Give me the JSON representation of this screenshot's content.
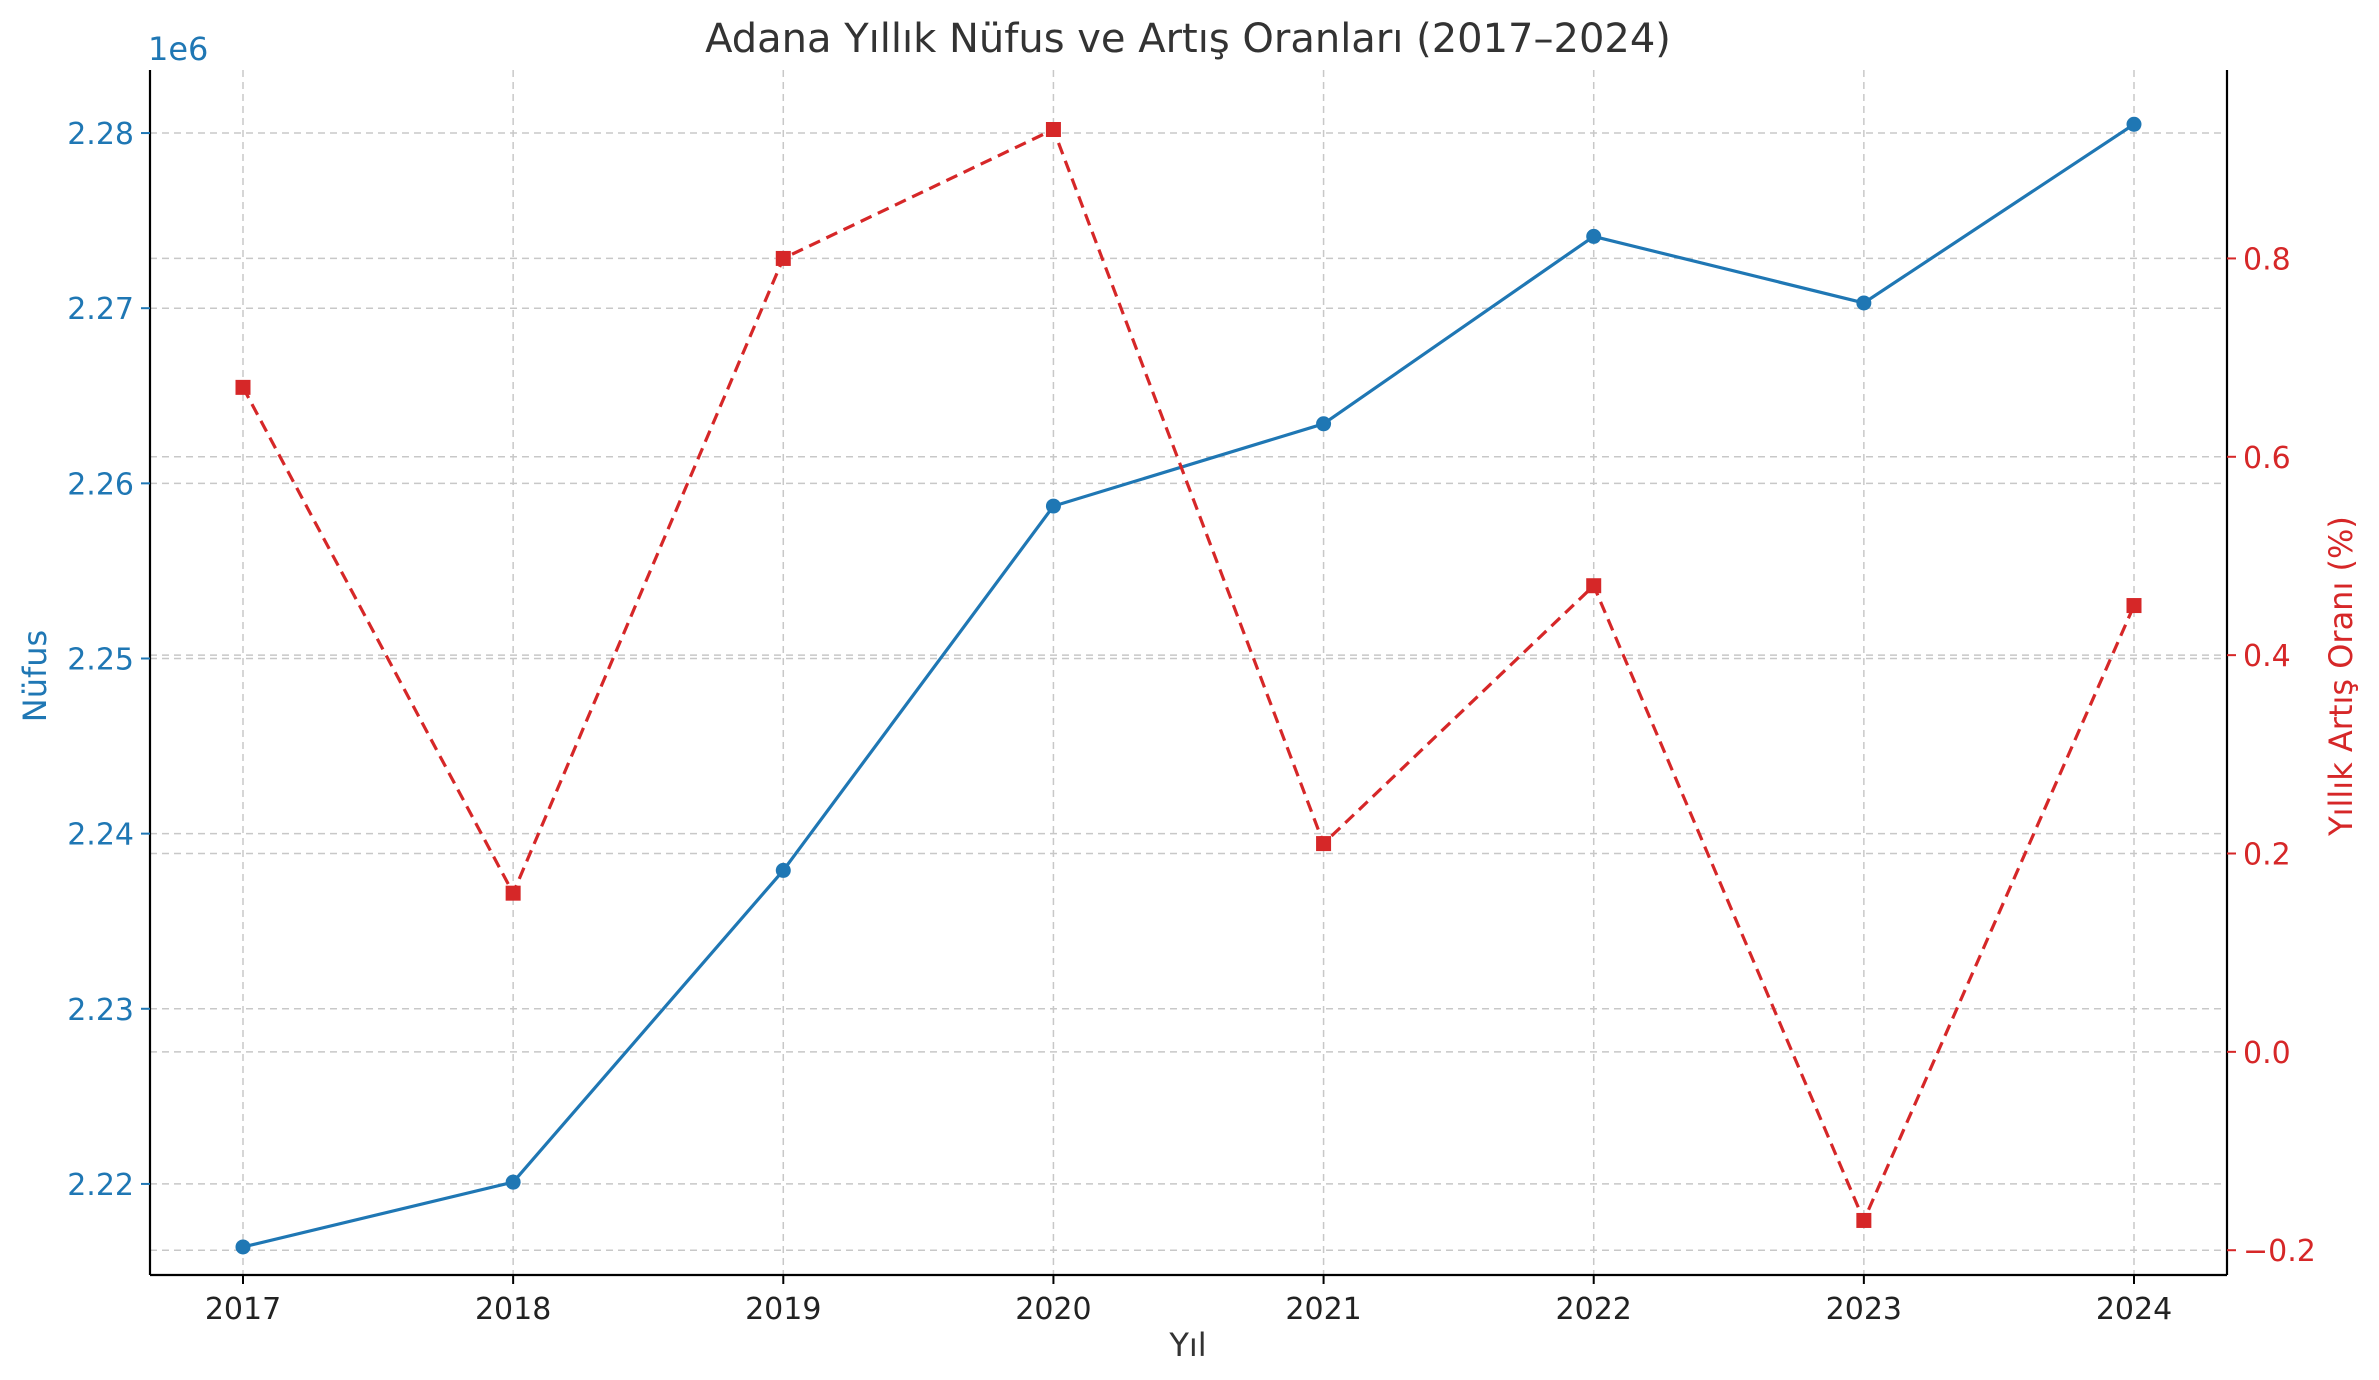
{
  "chart_data": {
    "type": "line",
    "title": "Adana Yıllık Nüfus ve Artış Oranları (2017–2024)",
    "xlabel": "Yıl",
    "x": [
      2017,
      2018,
      2019,
      2020,
      2021,
      2022,
      2023,
      2024
    ],
    "y_left": {
      "label": "Nüfus",
      "offset_label": "1e6",
      "color": "#1f77b4",
      "ticks": [
        2.22,
        2.23,
        2.24,
        2.25,
        2.26,
        2.27,
        2.28
      ],
      "tick_labels": [
        "2.22",
        "2.23",
        "2.24",
        "2.25",
        "2.26",
        "2.27",
        "2.28"
      ],
      "ylim": [
        2.2148,
        2.2836
      ]
    },
    "y_right": {
      "label": "Yıllık Artış Oranı (%)",
      "color": "#d62728",
      "ticks": [
        -0.2,
        0.0,
        0.2,
        0.4,
        0.6,
        0.8
      ],
      "tick_labels": [
        "−0.2",
        "0.0",
        "0.2",
        "0.4",
        "0.6",
        "0.8"
      ],
      "ylim": [
        -0.225,
        0.99
      ]
    },
    "series": [
      {
        "axis": "left",
        "color": "#1f77b4",
        "style": "solid",
        "marker": "circle",
        "values": [
          2.2164,
          2.2201,
          2.2379,
          2.2587,
          2.2634,
          2.2741,
          2.2703,
          2.2805
        ]
      },
      {
        "axis": "right",
        "color": "#d62728",
        "style": "dashed",
        "marker": "square",
        "values": [
          0.67,
          0.16,
          0.8,
          0.93,
          0.21,
          0.47,
          -0.17,
          0.45
        ]
      }
    ],
    "grid": true
  }
}
